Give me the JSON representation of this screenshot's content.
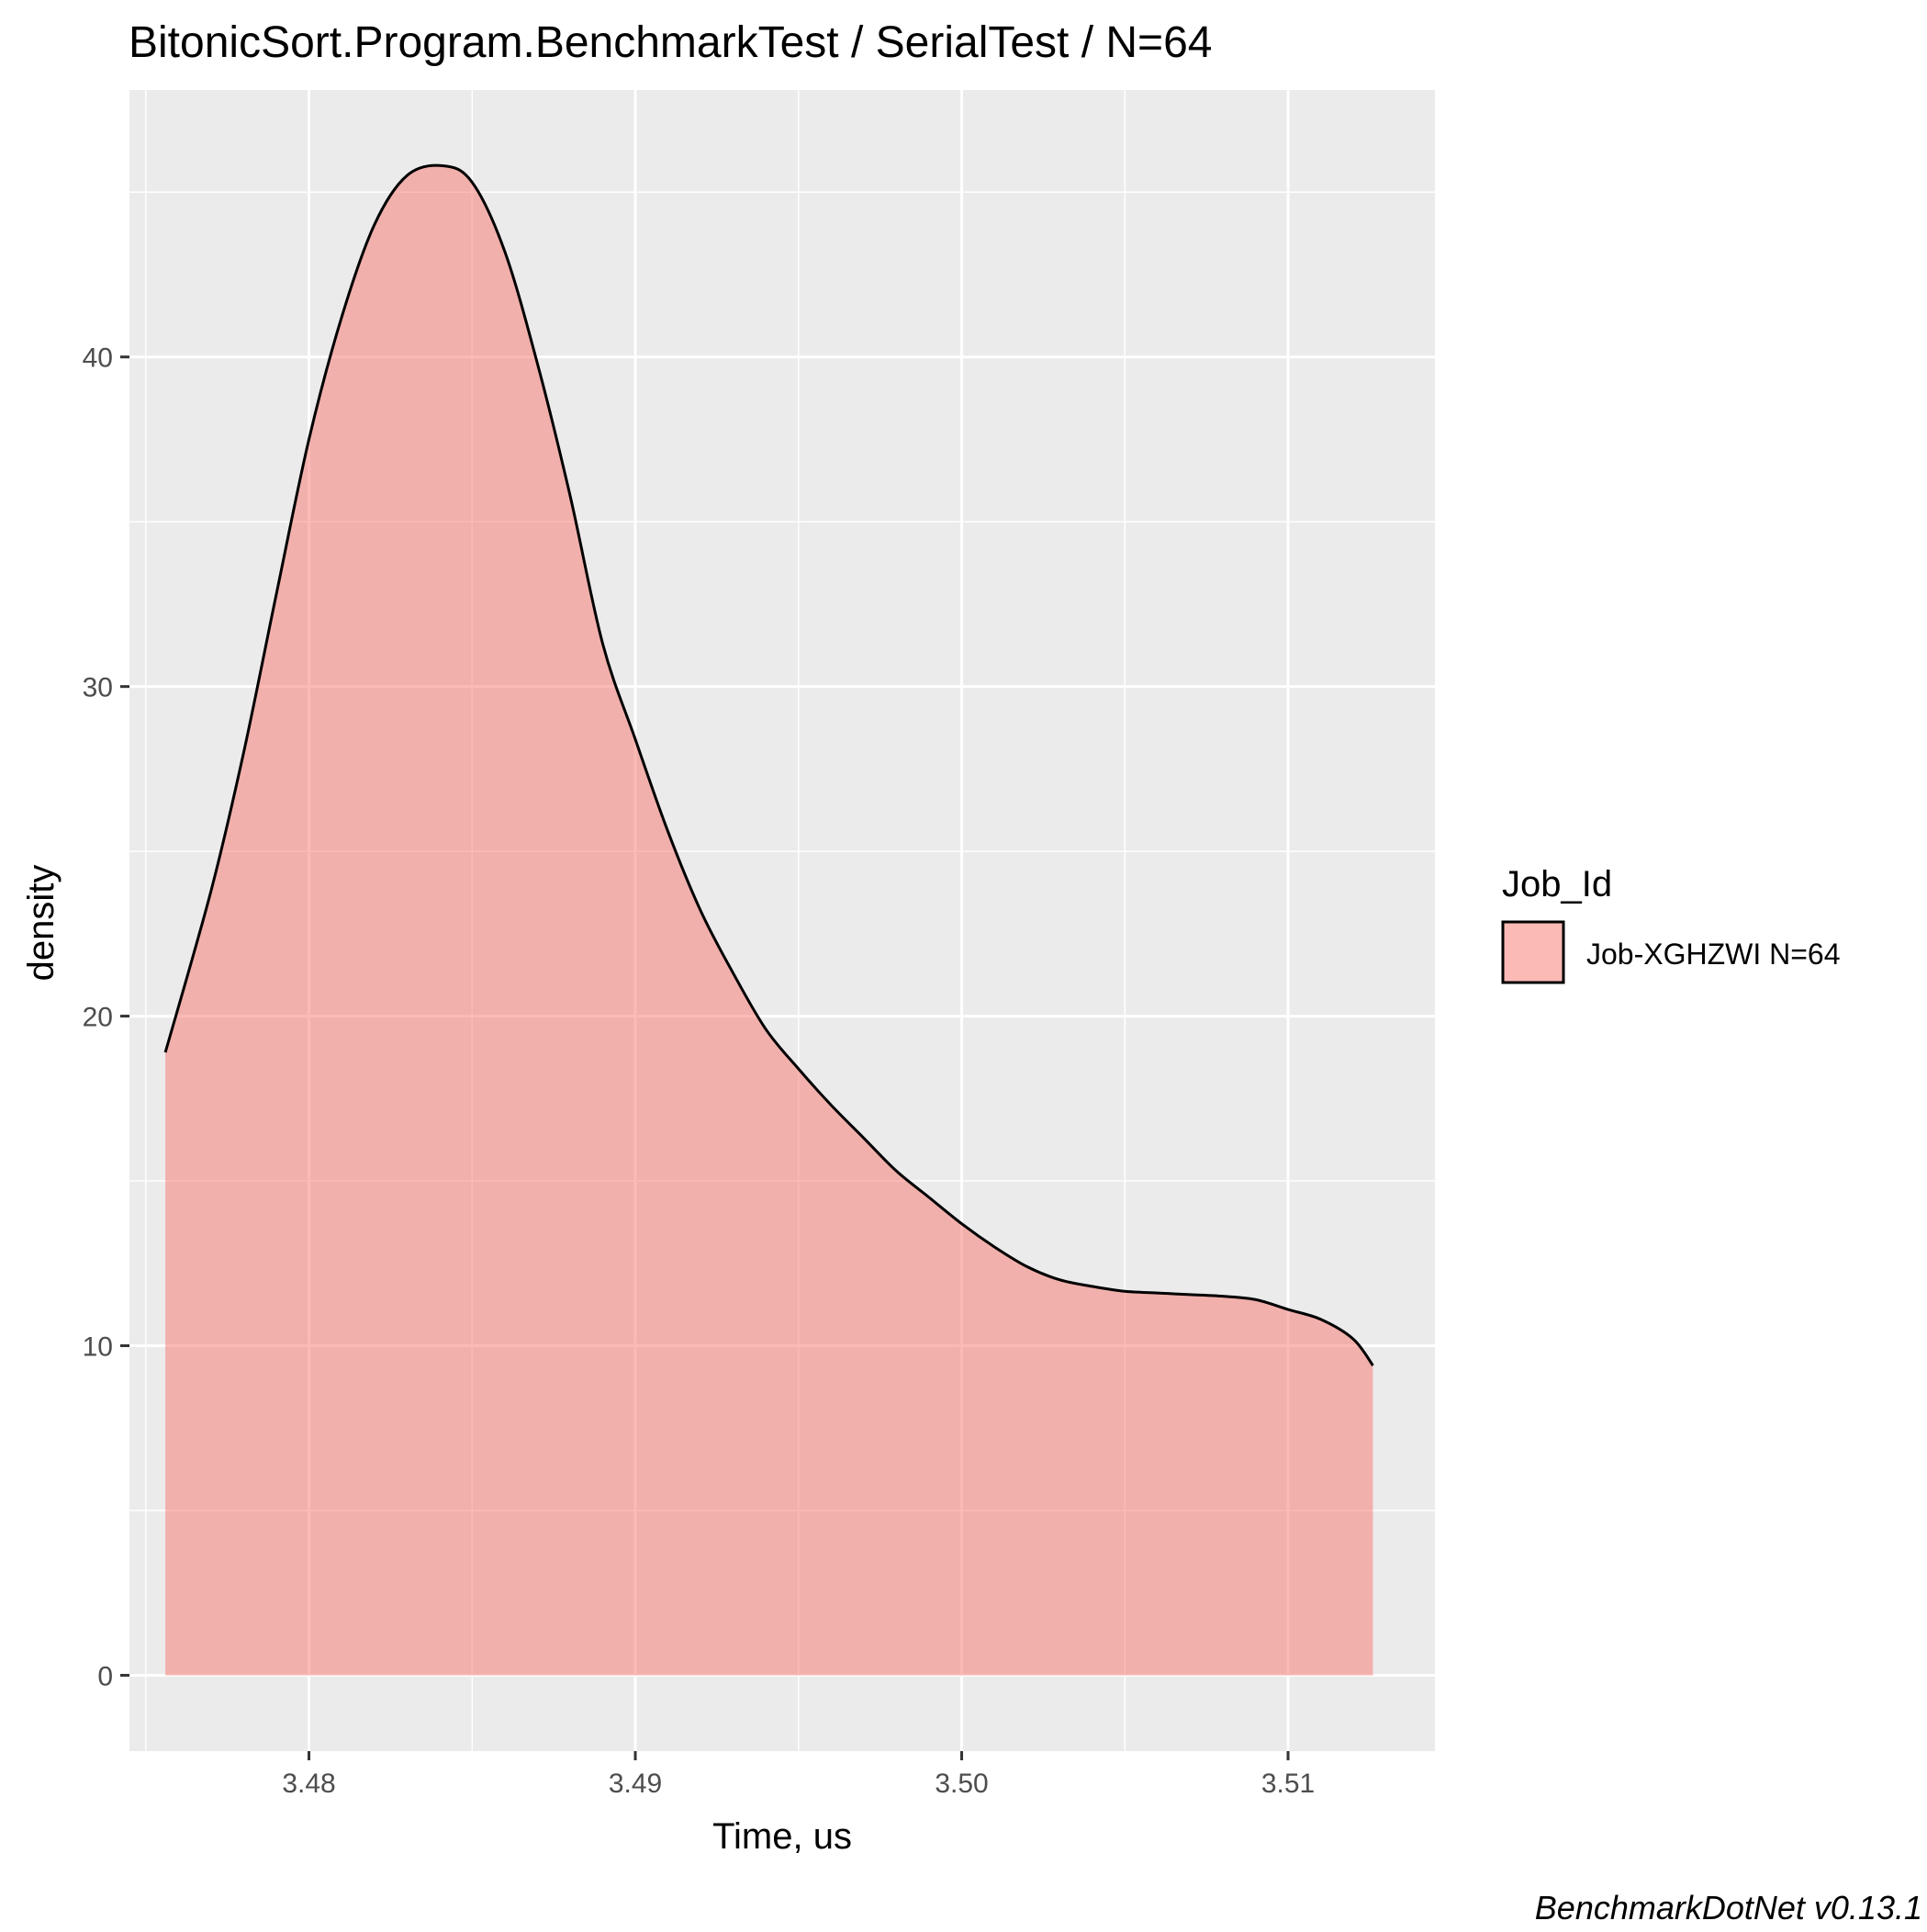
{
  "chart_data": {
    "type": "area",
    "title": "BitonicSort.Program.BenchmarkTest / SerialTest / N=64",
    "xlabel": "Time, us",
    "ylabel": "density",
    "caption": "BenchmarkDotNet v0.13.1",
    "xlim": [
      3.4745,
      3.5145
    ],
    "ylim": [
      -2.3,
      48.1
    ],
    "x_ticks": [
      3.48,
      3.49,
      3.5,
      3.51
    ],
    "x_tick_labels": [
      "3.48",
      "3.49",
      "3.50",
      "3.51"
    ],
    "x_minor_ticks": [
      3.475,
      3.485,
      3.495,
      3.505
    ],
    "y_ticks": [
      0,
      10,
      20,
      30,
      40
    ],
    "y_tick_labels": [
      "0",
      "10",
      "20",
      "30",
      "40"
    ],
    "y_minor_ticks": [
      5,
      15,
      25,
      35,
      45
    ],
    "grid": true,
    "legend": {
      "title": "Job_Id",
      "position": "right",
      "entries": [
        "Job-XGHZWI N=64"
      ]
    },
    "colors": {
      "panel_background": "#ebebeb",
      "grid": "#ffffff",
      "fill": "#f8766d",
      "fill_opacity": 0.5,
      "line": "#000000"
    },
    "series": [
      {
        "name": "Job-XGHZWI N=64",
        "x": [
          3.4756,
          3.477,
          3.478,
          3.479,
          3.48,
          3.481,
          3.482,
          3.483,
          3.4841,
          3.485,
          3.486,
          3.487,
          3.488,
          3.489,
          3.49,
          3.491,
          3.492,
          3.493,
          3.494,
          3.495,
          3.496,
          3.497,
          3.498,
          3.499,
          3.5,
          3.501,
          3.502,
          3.503,
          3.504,
          3.505,
          3.506,
          3.507,
          3.508,
          3.509,
          3.51,
          3.511,
          3.512,
          3.5126
        ],
        "y": [
          18.9,
          23.8,
          28.0,
          32.8,
          37.5,
          41.2,
          44.0,
          45.5,
          45.8,
          45.3,
          43.2,
          39.8,
          35.8,
          31.3,
          28.4,
          25.6,
          23.2,
          21.3,
          19.6,
          18.4,
          17.3,
          16.3,
          15.3,
          14.5,
          13.7,
          13.0,
          12.4,
          12.0,
          11.8,
          11.65,
          11.6,
          11.55,
          11.5,
          11.4,
          11.1,
          10.8,
          10.2,
          9.4
        ]
      }
    ]
  }
}
